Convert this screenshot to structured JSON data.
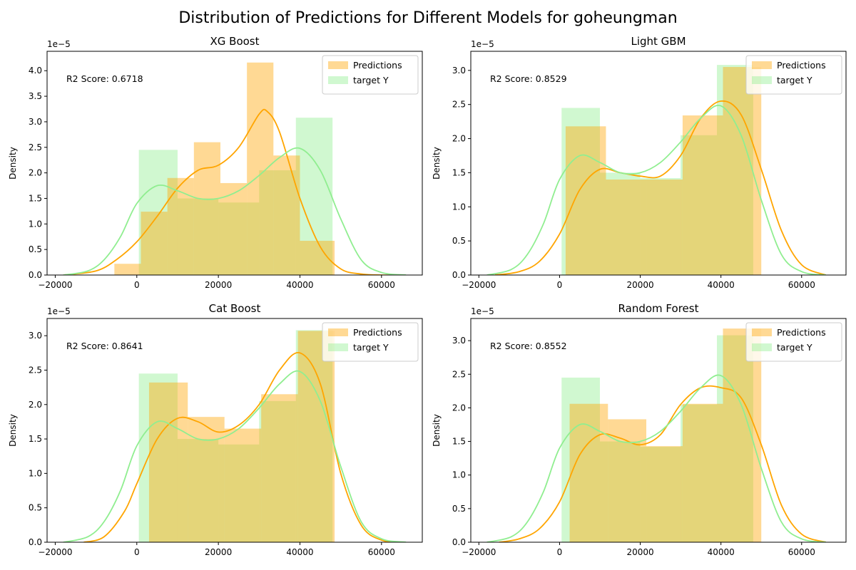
{
  "figure": {
    "suptitle": "Distribution of Predictions for Different Models for goheungman",
    "colors": {
      "predictions": "#ffa500",
      "target": "#90ee90",
      "axis": "#000000"
    }
  },
  "chart_data": [
    {
      "type": "histogram_kde",
      "title": "XG Boost",
      "ylabel": "Density",
      "y_exponent_label": "1e−5",
      "annotation": "R2 Score: 0.6718",
      "legend": [
        "Predictions",
        "target Y"
      ],
      "legend_position": "top-right",
      "xlim": [
        -22000,
        70000
      ],
      "ylim": [
        0,
        4.38
      ],
      "x_ticks": [
        -20000,
        0,
        20000,
        40000,
        60000
      ],
      "x_tick_labels": [
        "−20000",
        "0",
        "20000",
        "40000",
        "60000"
      ],
      "y_ticks": [
        0,
        0.5,
        1,
        1.5,
        2,
        2.5,
        3,
        3.5,
        4
      ],
      "y_tick_labels": [
        "0.0",
        "0.5",
        "1.0",
        "1.5",
        "2.0",
        "2.5",
        "3.0",
        "3.5",
        "4.0"
      ],
      "series": [
        {
          "name": "Predictions",
          "bins": [
            -5500,
            1000,
            7500,
            14000,
            20500,
            27000,
            33500,
            40000,
            48500
          ],
          "density": [
            0.22,
            1.24,
            1.9,
            2.6,
            1.8,
            4.16,
            2.34,
            0.67
          ],
          "kde_x": [
            -18000,
            -10000,
            -5000,
            0,
            5000,
            10000,
            15000,
            20000,
            25000,
            30000,
            32000,
            35000,
            40000,
            45000,
            50000,
            55000,
            60000,
            65000
          ],
          "kde_y": [
            0.0,
            0.08,
            0.3,
            0.65,
            1.15,
            1.7,
            2.05,
            2.15,
            2.5,
            3.15,
            3.2,
            2.8,
            1.5,
            0.55,
            0.12,
            0.02,
            0.0,
            0.0
          ]
        },
        {
          "name": "target Y",
          "bins": [
            500,
            10000,
            20000,
            30000,
            39000,
            48000
          ],
          "density": [
            2.45,
            1.5,
            1.42,
            2.05,
            3.08
          ],
          "kde_x": [
            -18000,
            -12000,
            -8000,
            -4000,
            0,
            5000,
            10000,
            15000,
            20000,
            25000,
            30000,
            35000,
            40000,
            45000,
            50000,
            55000,
            60000,
            66000
          ],
          "kde_y": [
            0.0,
            0.08,
            0.3,
            0.75,
            1.4,
            1.75,
            1.65,
            1.5,
            1.5,
            1.65,
            1.95,
            2.3,
            2.48,
            2.05,
            1.1,
            0.3,
            0.05,
            0.0
          ]
        }
      ]
    },
    {
      "type": "histogram_kde",
      "title": "Light GBM",
      "ylabel": "Density",
      "y_exponent_label": "1e−5",
      "annotation": "R2 Score: 0.8529",
      "legend": [
        "Predictions",
        "target Y"
      ],
      "legend_position": "top-right",
      "xlim": [
        -22000,
        71000
      ],
      "ylim": [
        0,
        3.28
      ],
      "x_ticks": [
        -20000,
        0,
        20000,
        40000,
        60000
      ],
      "x_tick_labels": [
        "−20000",
        "0",
        "20000",
        "40000",
        "60000"
      ],
      "y_ticks": [
        0,
        0.5,
        1,
        1.5,
        2,
        2.5,
        3
      ],
      "y_tick_labels": [
        "0.0",
        "0.5",
        "1.0",
        "1.5",
        "2.0",
        "2.5",
        "3.0"
      ],
      "series": [
        {
          "name": "Predictions",
          "bins": [
            1500,
            11500,
            21500,
            30500,
            40500,
            50000
          ],
          "density": [
            2.18,
            1.4,
            1.4,
            2.34,
            3.05
          ],
          "kde_x": [
            -16000,
            -10000,
            -5000,
            0,
            5000,
            10000,
            15000,
            20000,
            25000,
            30000,
            35000,
            40000,
            45000,
            50000,
            55000,
            60000,
            66000
          ],
          "kde_y": [
            0.0,
            0.05,
            0.2,
            0.6,
            1.25,
            1.55,
            1.5,
            1.45,
            1.45,
            1.75,
            2.3,
            2.55,
            2.35,
            1.55,
            0.65,
            0.15,
            0.0
          ]
        },
        {
          "name": "target Y",
          "bins": [
            500,
            10000,
            20000,
            30000,
            39000,
            48000
          ],
          "density": [
            2.45,
            1.5,
            1.42,
            2.05,
            3.08
          ],
          "kde_x": [
            -18000,
            -12000,
            -8000,
            -4000,
            0,
            5000,
            10000,
            15000,
            20000,
            25000,
            30000,
            35000,
            40000,
            45000,
            50000,
            55000,
            60000,
            66000
          ],
          "kde_y": [
            0.0,
            0.08,
            0.3,
            0.75,
            1.4,
            1.75,
            1.65,
            1.5,
            1.5,
            1.65,
            1.95,
            2.3,
            2.48,
            2.05,
            1.1,
            0.3,
            0.05,
            0.0
          ]
        }
      ]
    },
    {
      "type": "histogram_kde",
      "title": "Cat Boost",
      "ylabel": "Density",
      "y_exponent_label": "1e−5",
      "annotation": "R2 Score: 0.8641",
      "legend": [
        "Predictions",
        "target Y"
      ],
      "legend_position": "top-right",
      "xlim": [
        -22000,
        70000
      ],
      "ylim": [
        0,
        3.25
      ],
      "x_ticks": [
        -20000,
        0,
        20000,
        40000,
        60000
      ],
      "x_tick_labels": [
        "−20000",
        "0",
        "20000",
        "40000",
        "60000"
      ],
      "y_ticks": [
        0,
        0.5,
        1,
        1.5,
        2,
        2.5,
        3
      ],
      "y_tick_labels": [
        "0.0",
        "0.5",
        "1.0",
        "1.5",
        "2.0",
        "2.5",
        "3.0"
      ],
      "series": [
        {
          "name": "Predictions",
          "bins": [
            3000,
            12500,
            21500,
            30500,
            39500,
            48500
          ],
          "density": [
            2.32,
            1.82,
            1.65,
            2.15,
            3.07
          ],
          "kde_x": [
            -13000,
            -8000,
            -3000,
            0,
            5000,
            10000,
            15000,
            20000,
            25000,
            30000,
            35000,
            40000,
            45000,
            50000,
            55000,
            60000,
            65000
          ],
          "kde_y": [
            0.0,
            0.08,
            0.45,
            0.85,
            1.5,
            1.8,
            1.75,
            1.6,
            1.7,
            2.0,
            2.5,
            2.75,
            2.3,
            1.0,
            0.25,
            0.03,
            0.0
          ]
        },
        {
          "name": "target Y",
          "bins": [
            500,
            10000,
            20000,
            30000,
            39000,
            48000
          ],
          "density": [
            2.45,
            1.5,
            1.42,
            2.05,
            3.08
          ],
          "kde_x": [
            -18000,
            -12000,
            -8000,
            -4000,
            0,
            5000,
            10000,
            15000,
            20000,
            25000,
            30000,
            35000,
            40000,
            45000,
            50000,
            55000,
            60000,
            66000
          ],
          "kde_y": [
            0.0,
            0.08,
            0.3,
            0.75,
            1.4,
            1.75,
            1.65,
            1.5,
            1.5,
            1.65,
            1.95,
            2.3,
            2.48,
            2.05,
            1.1,
            0.3,
            0.05,
            0.0
          ]
        }
      ]
    },
    {
      "type": "histogram_kde",
      "title": "Random Forest",
      "ylabel": "Density",
      "y_exponent_label": "1e−5",
      "annotation": "R2 Score: 0.8552",
      "legend": [
        "Predictions",
        "target Y"
      ],
      "legend_position": "top-right",
      "xlim": [
        -22000,
        71000
      ],
      "ylim": [
        0,
        3.33
      ],
      "x_ticks": [
        -20000,
        0,
        20000,
        40000,
        60000
      ],
      "x_tick_labels": [
        "−20000",
        "0",
        "20000",
        "40000",
        "60000"
      ],
      "y_ticks": [
        0,
        0.5,
        1,
        1.5,
        2,
        2.5,
        3
      ],
      "y_tick_labels": [
        "0.0",
        "0.5",
        "1.0",
        "1.5",
        "2.0",
        "2.5",
        "3.0"
      ],
      "series": [
        {
          "name": "Predictions",
          "bins": [
            2500,
            12000,
            21500,
            30500,
            40500,
            50000
          ],
          "density": [
            2.06,
            1.83,
            1.43,
            2.06,
            3.18
          ],
          "kde_x": [
            -15000,
            -10000,
            -5000,
            0,
            5000,
            10000,
            15000,
            20000,
            25000,
            30000,
            35000,
            40000,
            45000,
            50000,
            55000,
            60000,
            66000
          ],
          "kde_y": [
            0.0,
            0.05,
            0.2,
            0.6,
            1.3,
            1.6,
            1.55,
            1.45,
            1.6,
            2.05,
            2.3,
            2.3,
            2.15,
            1.45,
            0.55,
            0.12,
            0.0
          ]
        },
        {
          "name": "target Y",
          "bins": [
            500,
            10000,
            20000,
            30000,
            39000,
            48000
          ],
          "density": [
            2.45,
            1.5,
            1.42,
            2.05,
            3.08
          ],
          "kde_x": [
            -18000,
            -12000,
            -8000,
            -4000,
            0,
            5000,
            10000,
            15000,
            20000,
            25000,
            30000,
            35000,
            40000,
            45000,
            50000,
            55000,
            60000,
            66000
          ],
          "kde_y": [
            0.0,
            0.08,
            0.3,
            0.75,
            1.4,
            1.75,
            1.65,
            1.5,
            1.5,
            1.65,
            1.95,
            2.3,
            2.48,
            2.05,
            1.1,
            0.3,
            0.05,
            0.0
          ]
        }
      ]
    }
  ]
}
